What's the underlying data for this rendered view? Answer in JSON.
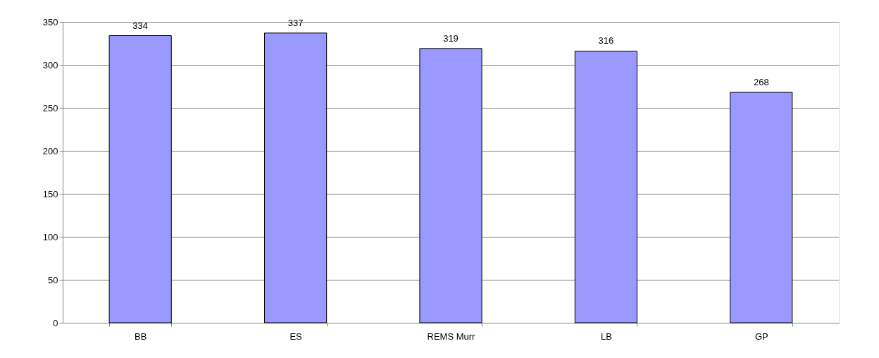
{
  "chart_data": {
    "type": "bar",
    "categories": [
      "BB",
      "ES",
      "REMS Murr",
      "LB",
      "GP"
    ],
    "values": [
      334,
      337,
      319,
      316,
      268
    ],
    "color": "#9999ff",
    "ylim": [
      0,
      350
    ],
    "yticks": [
      0,
      50,
      100,
      150,
      200,
      250,
      300,
      350
    ],
    "grid": "y",
    "data_labels": true
  }
}
